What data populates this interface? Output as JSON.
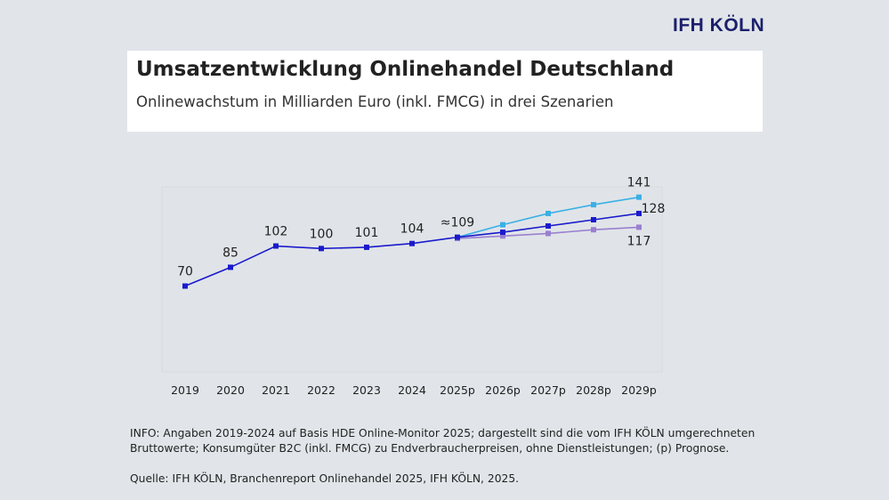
{
  "logo": "IFH KÖLN",
  "title": "Umsatzentwicklung Onlinehandel Deutschland",
  "subtitle": "Onlinewachstum in Milliarden Euro (inkl. FMCG) in drei Szenarien",
  "chart_data": {
    "type": "line",
    "categories": [
      "2019",
      "2020",
      "2021",
      "2022",
      "2023",
      "2024",
      "2025p",
      "2026p",
      "2027p",
      "2028p",
      "2029p"
    ],
    "ylim": [
      0,
      150
    ],
    "grid": false,
    "series": [
      {
        "color": "#1a1acc",
        "values": [
          70,
          85,
          102,
          100,
          101,
          104,
          109,
          113,
          118,
          123,
          128
        ]
      },
      {
        "color": "#3ab0e6",
        "values": [
          null,
          null,
          null,
          null,
          null,
          null,
          109,
          119,
          128,
          135,
          141
        ]
      },
      {
        "color": "#9a80d0",
        "values": [
          null,
          null,
          null,
          null,
          null,
          null,
          108,
          110,
          112,
          115,
          117
        ]
      }
    ],
    "data_labels": [
      {
        "category": "2019",
        "text": "70",
        "series": 0
      },
      {
        "category": "2020",
        "text": "85",
        "series": 0
      },
      {
        "category": "2021",
        "text": "102",
        "series": 0
      },
      {
        "category": "2022",
        "text": "100",
        "series": 0
      },
      {
        "category": "2023",
        "text": "101",
        "series": 0
      },
      {
        "category": "2024",
        "text": "104",
        "series": 0
      },
      {
        "category": "2025p",
        "text": "≈109",
        "series": 0
      },
      {
        "category": "2029p",
        "text": "141",
        "series": 1
      },
      {
        "category": "2029p",
        "text": "128",
        "series": 0
      },
      {
        "category": "2029p",
        "text": "117",
        "series": 2
      }
    ]
  },
  "info": "INFO: Angaben 2019-2024 auf Basis HDE Online-Monitor 2025; dargestellt sind die vom IFH KÖLN umgerechneten Bruttowerte; Konsumgüter B2C (inkl. FMCG) zu Endverbraucherpreisen, ohne Dienstleistungen; (p) Prognose.",
  "source": "Quelle: IFH KÖLN, Branchenreport Onlinehandel 2025, IFH KÖLN, 2025."
}
